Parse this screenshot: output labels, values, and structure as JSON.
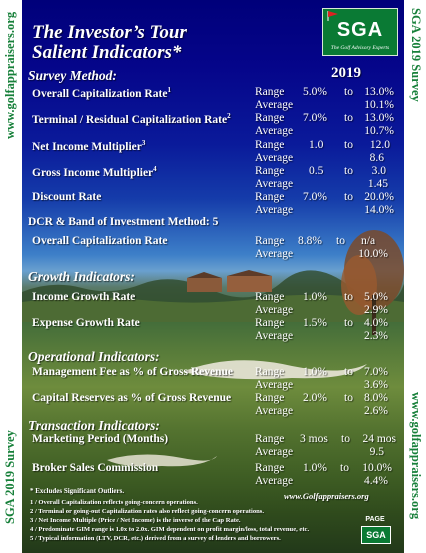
{
  "sidebar": {
    "left_top": "www.golfappraisers.org",
    "left_bottom": "SGA  2019  Survey",
    "right_top": "SGA  2019  Survey",
    "right_bottom": "www.golfappraisers.org"
  },
  "header": {
    "title_line1": "The Investor’s Tour",
    "title_line2": "Salient Indicators*",
    "year": "2019"
  },
  "logo": {
    "text": "SGA",
    "subtitle": "The Golf Advisory Experts"
  },
  "sections": {
    "survey_method": "Survey Method:",
    "dcr_method": "DCR & Band of Investment Method: 5",
    "growth": "Growth Indicators:",
    "operational": "Operational Indicators:",
    "transaction": "Transaction Indicators:"
  },
  "labels": {
    "range": "Range",
    "average": "Average",
    "to": "to"
  },
  "rows": {
    "ocr": {
      "name": "Overall Capitalization Rate",
      "sup": "1",
      "low": "5.0%",
      "high": "13.0%",
      "avg": "10.1%"
    },
    "tcr": {
      "name": "Terminal / Residual Capitalization Rate",
      "sup": "2",
      "low": "7.0%",
      "high": "13.0%",
      "avg": "10.7%"
    },
    "nim": {
      "name": "Net Income Multiplier",
      "sup": "3",
      "low": "1.0",
      "high": "12.0",
      "avg": "8.6"
    },
    "gim": {
      "name": "Gross Income Multiplier",
      "sup": "4",
      "low": "0.5",
      "high": "3.0",
      "avg": "1.45"
    },
    "dr": {
      "name": "Discount Rate",
      "sup": "",
      "low": "7.0%",
      "high": "20.0%",
      "avg": "14.0%"
    },
    "dcr": {
      "name": "Overall Capitalization Rate",
      "sup": "",
      "low": "8.8%",
      "high": "n/a",
      "avg": "10.0%"
    },
    "igr": {
      "name": "Income Growth Rate",
      "sup": "",
      "low": "1.0%",
      "high": "5.0%",
      "avg": "2.9%"
    },
    "egr": {
      "name": "Expense Growth Rate",
      "sup": "",
      "low": "1.5%",
      "high": "4.0%",
      "avg": "2.3%"
    },
    "mgmt": {
      "name": "Management Fee as % of Gross Revenue",
      "sup": "",
      "low": "1.0%",
      "high": "7.0%",
      "avg": "3.6%"
    },
    "capres": {
      "name": "Capital Reserves as % of Gross Revenue",
      "sup": "",
      "low": "2.0%",
      "high": "8.0%",
      "avg": "2.6%"
    },
    "mkt": {
      "name": "Marketing Period (Months)",
      "sup": "",
      "low": "3 mos",
      "high": "24 mos",
      "avg": "9.5"
    },
    "broker": {
      "name": "Broker Sales Commission",
      "sup": "",
      "low": "1.0%",
      "high": "10.0%",
      "avg": "4.4%"
    }
  },
  "footnotes": {
    "excl": "* Excludes Significant Outliers.",
    "website": "www.Golfappraisers.org",
    "n1": "1 /  Overall Capitalization reflects going-concern operations.",
    "n2": "2 /  Terminal or going-out Capitalization rates also reflect going-concern operations.",
    "n3": "3 /  Net Income Multiple (Price / Net Income) is the inverse of the Cap Rate.",
    "n4": "4 /  Predominate GIM range is 1.0x to 2.0x. GIM dependent on profit margin/loss, total revenue, etc.",
    "n5": "5 /  Typical information (LTV, DCR, etc.) derived from a survey of lenders and borrowers."
  },
  "page_badge": {
    "top": "PAGE",
    "box": "SGA"
  }
}
